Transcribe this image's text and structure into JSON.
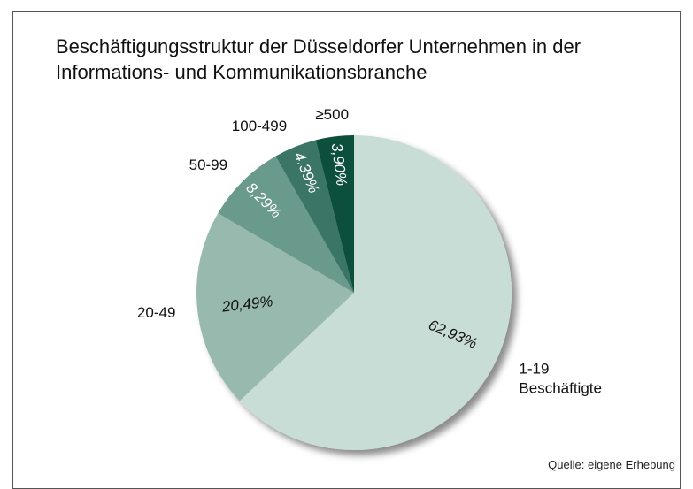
{
  "chart_data": {
    "type": "pie",
    "title": "Beschäftigungsstruktur der Düsseldorfer Unternehmen in der Informations- und Kommunikationsbranche",
    "categories": [
      "1-19 Beschäftigte",
      "20-49",
      "50-99",
      "100-499",
      "≥500"
    ],
    "values": [
      62.93,
      20.49,
      8.29,
      4.39,
      3.9
    ],
    "value_labels": [
      "62,93%",
      "20,49%",
      "8,29%",
      "4,39%",
      "3,90%"
    ],
    "colors": [
      "#c9ddd7",
      "#97b9ae",
      "#6a9a8b",
      "#3b7565",
      "#0f4f3c"
    ],
    "source": "Quelle: eigene Erhebung"
  }
}
